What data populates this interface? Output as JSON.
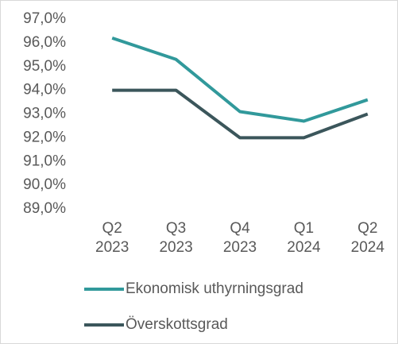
{
  "chart_data": {
    "type": "line",
    "categories": [
      "Q2 2023",
      "Q3 2023",
      "Q4 2023",
      "Q1 2024",
      "Q2 2024"
    ],
    "series": [
      {
        "name": "Ekonomisk uthyrningsgrad",
        "color": "#31999b",
        "values": [
          96.2,
          95.3,
          93.1,
          92.7,
          93.6
        ]
      },
      {
        "name": "Överskottsgrad",
        "color": "#3b565b",
        "values": [
          94,
          94,
          92,
          92,
          93
        ]
      }
    ],
    "ylim": [
      89,
      97
    ],
    "yticks": [
      {
        "value": 89,
        "label": "89,0%"
      },
      {
        "value": 90,
        "label": "90,0%"
      },
      {
        "value": 91,
        "label": "91,0%"
      },
      {
        "value": 92,
        "label": "92,0%"
      },
      {
        "value": 93,
        "label": "93,0%"
      },
      {
        "value": 94,
        "label": "94,0%"
      },
      {
        "value": 95,
        "label": "95,0%"
      },
      {
        "value": 96,
        "label": "96,0%"
      },
      {
        "value": 97,
        "label": "97,0%"
      }
    ],
    "grid": false,
    "legend": "bottom"
  }
}
